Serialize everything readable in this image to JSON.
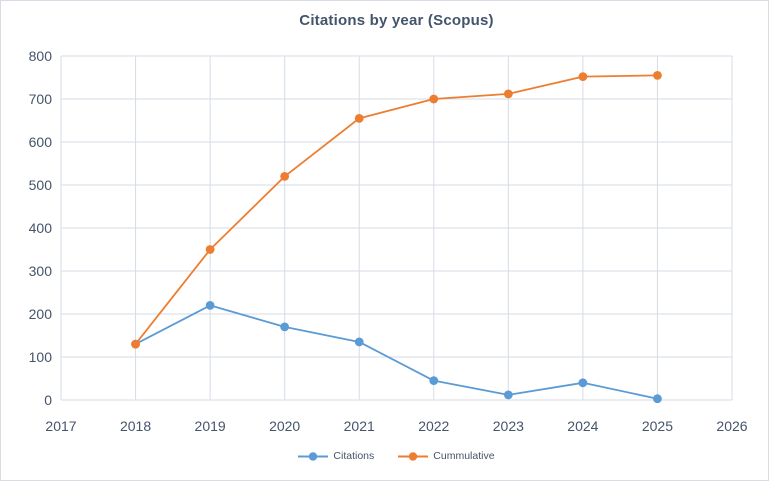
{
  "chart_data": {
    "type": "line",
    "title": "Citations by year (Scopus)",
    "x": [
      2018,
      2019,
      2020,
      2021,
      2022,
      2023,
      2024,
      2025
    ],
    "series": [
      {
        "name": "Citations",
        "color": "#5B9BD5",
        "values": [
          130,
          220,
          170,
          135,
          45,
          12,
          40,
          3
        ]
      },
      {
        "name": "Cummulative",
        "color": "#ED7D31",
        "values": [
          130,
          350,
          520,
          655,
          700,
          712,
          752,
          755
        ]
      }
    ],
    "xlim": [
      2017,
      2026
    ],
    "ylim": [
      0,
      800
    ],
    "x_ticks": [
      2017,
      2018,
      2019,
      2020,
      2021,
      2022,
      2023,
      2024,
      2025,
      2026
    ],
    "y_ticks": [
      0,
      100,
      200,
      300,
      400,
      500,
      600,
      700,
      800
    ],
    "grid": true,
    "marker": "circle",
    "legend_position": "bottom"
  },
  "style": {
    "title_color": "#44546A",
    "axis_text_color": "#44546A",
    "gridline_color": "#D6DCE5",
    "frame_border_color": "#D8DCE4",
    "background": "#FFFFFF"
  }
}
